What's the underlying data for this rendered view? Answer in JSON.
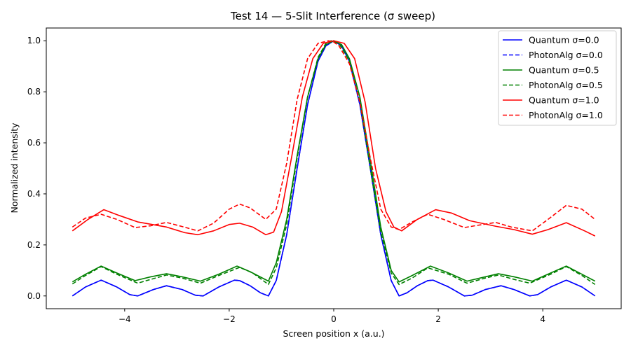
{
  "chart_data": {
    "type": "line",
    "title": "Test 14 — 5-Slit Interference (σ sweep)",
    "xlabel": "Screen position x (a.u.)",
    "ylabel": "Normalized intensity",
    "xlim": [
      -5.5,
      5.5
    ],
    "ylim": [
      -0.05,
      1.05
    ],
    "xticks": [
      -4,
      -2,
      0,
      2,
      4
    ],
    "xtick_labels": [
      "−4",
      "−2",
      "0",
      "2",
      "4"
    ],
    "yticks": [
      0.0,
      0.2,
      0.4,
      0.6,
      0.8,
      1.0
    ],
    "ytick_labels": [
      "0.0",
      "0.2",
      "0.4",
      "0.6",
      "0.8",
      "1.0"
    ],
    "grid": false,
    "legend_position": "top-right",
    "series": [
      {
        "name": "Quantum σ=0.0",
        "color": "#0000ff",
        "style": "solid",
        "x": [
          -5.0,
          -4.75,
          -4.45,
          -4.15,
          -3.9,
          -3.75,
          -3.45,
          -3.2,
          -2.9,
          -2.65,
          -2.5,
          -2.2,
          -1.9,
          -1.8,
          -1.6,
          -1.4,
          -1.25,
          -1.1,
          -0.9,
          -0.7,
          -0.5,
          -0.3,
          -0.15,
          0.0,
          0.15,
          0.3,
          0.5,
          0.7,
          0.9,
          1.1,
          1.25,
          1.4,
          1.6,
          1.8,
          1.9,
          2.2,
          2.5,
          2.65,
          2.9,
          3.2,
          3.45,
          3.75,
          3.9,
          4.15,
          4.45,
          4.75,
          5.0
        ],
        "y": [
          0.0,
          0.035,
          0.062,
          0.035,
          0.005,
          0.0,
          0.025,
          0.04,
          0.025,
          0.003,
          0.0,
          0.035,
          0.062,
          0.06,
          0.04,
          0.012,
          0.0,
          0.06,
          0.24,
          0.5,
          0.75,
          0.92,
          0.98,
          1.0,
          0.98,
          0.92,
          0.75,
          0.5,
          0.24,
          0.06,
          0.0,
          0.012,
          0.04,
          0.06,
          0.062,
          0.035,
          0.0,
          0.003,
          0.025,
          0.04,
          0.025,
          0.0,
          0.005,
          0.035,
          0.062,
          0.035,
          0.0
        ]
      },
      {
        "name": "PhotonAlg σ=0.0",
        "color": "#0000ff",
        "style": "dashed",
        "x": [
          -5.0,
          -4.75,
          -4.45,
          -4.15,
          -3.9,
          -3.75,
          -3.45,
          -3.2,
          -2.9,
          -2.65,
          -2.5,
          -2.2,
          -1.9,
          -1.8,
          -1.6,
          -1.4,
          -1.25,
          -1.1,
          -0.9,
          -0.7,
          -0.5,
          -0.3,
          -0.15,
          0.0,
          0.15,
          0.3,
          0.5,
          0.7,
          0.9,
          1.1,
          1.25,
          1.4,
          1.6,
          1.8,
          1.9,
          2.2,
          2.5,
          2.65,
          2.9,
          3.2,
          3.45,
          3.75,
          3.9,
          4.15,
          4.45,
          4.75,
          5.0
        ],
        "y": [
          0.0,
          0.035,
          0.062,
          0.035,
          0.005,
          0.0,
          0.025,
          0.04,
          0.025,
          0.003,
          0.0,
          0.035,
          0.062,
          0.06,
          0.04,
          0.012,
          0.0,
          0.06,
          0.24,
          0.5,
          0.75,
          0.92,
          0.98,
          1.0,
          0.98,
          0.92,
          0.75,
          0.5,
          0.24,
          0.06,
          0.0,
          0.012,
          0.04,
          0.06,
          0.062,
          0.035,
          0.0,
          0.003,
          0.025,
          0.04,
          0.025,
          0.0,
          0.005,
          0.035,
          0.062,
          0.035,
          0.0
        ]
      },
      {
        "name": "Quantum σ=0.5",
        "color": "#008000",
        "style": "solid",
        "x": [
          -5.0,
          -4.75,
          -4.45,
          -4.15,
          -3.8,
          -3.5,
          -3.2,
          -2.9,
          -2.55,
          -2.2,
          -1.85,
          -1.6,
          -1.25,
          -1.1,
          -0.9,
          -0.7,
          -0.5,
          -0.3,
          -0.15,
          0.0,
          0.15,
          0.3,
          0.5,
          0.7,
          0.9,
          1.1,
          1.25,
          1.5,
          1.85,
          2.2,
          2.55,
          2.9,
          3.15,
          3.45,
          3.8,
          4.15,
          4.45,
          4.75,
          5.0
        ],
        "y": [
          0.055,
          0.085,
          0.117,
          0.09,
          0.06,
          0.075,
          0.087,
          0.075,
          0.058,
          0.085,
          0.117,
          0.095,
          0.058,
          0.13,
          0.3,
          0.55,
          0.78,
          0.93,
          0.985,
          1.0,
          0.985,
          0.93,
          0.78,
          0.53,
          0.27,
          0.1,
          0.055,
          0.08,
          0.117,
          0.09,
          0.058,
          0.075,
          0.087,
          0.075,
          0.058,
          0.09,
          0.117,
          0.085,
          0.058
        ]
      },
      {
        "name": "PhotonAlg σ=0.5",
        "color": "#008000",
        "style": "dashed",
        "x": [
          -5.0,
          -4.75,
          -4.45,
          -4.15,
          -3.75,
          -3.5,
          -3.2,
          -2.9,
          -2.55,
          -2.2,
          -1.8,
          -1.55,
          -1.25,
          -1.1,
          -0.9,
          -0.7,
          -0.5,
          -0.3,
          -0.15,
          -0.05,
          0.1,
          0.3,
          0.5,
          0.7,
          0.9,
          1.1,
          1.25,
          1.5,
          1.8,
          2.2,
          2.55,
          2.9,
          3.15,
          3.45,
          3.75,
          4.15,
          4.45,
          4.75,
          5.0
        ],
        "y": [
          0.047,
          0.08,
          0.115,
          0.085,
          0.05,
          0.065,
          0.082,
          0.07,
          0.05,
          0.08,
          0.112,
          0.09,
          0.045,
          0.11,
          0.28,
          0.54,
          0.78,
          0.935,
          0.99,
          1.0,
          0.99,
          0.92,
          0.76,
          0.5,
          0.25,
          0.09,
          0.045,
          0.07,
          0.11,
          0.085,
          0.05,
          0.07,
          0.082,
          0.065,
          0.05,
          0.085,
          0.115,
          0.08,
          0.045
        ]
      },
      {
        "name": "Quantum σ=1.0",
        "color": "#ff0000",
        "style": "solid",
        "x": [
          -5.0,
          -4.7,
          -4.4,
          -4.1,
          -3.75,
          -3.2,
          -2.85,
          -2.6,
          -2.3,
          -2.0,
          -1.8,
          -1.55,
          -1.3,
          -1.15,
          -1.0,
          -0.8,
          -0.6,
          -0.4,
          -0.2,
          0.0,
          0.2,
          0.4,
          0.6,
          0.8,
          1.0,
          1.15,
          1.3,
          1.6,
          1.95,
          2.25,
          2.6,
          3.1,
          3.45,
          3.8,
          4.1,
          4.45,
          4.8,
          5.0
        ],
        "y": [
          0.255,
          0.3,
          0.338,
          0.315,
          0.29,
          0.27,
          0.248,
          0.24,
          0.255,
          0.28,
          0.285,
          0.27,
          0.24,
          0.25,
          0.33,
          0.55,
          0.78,
          0.93,
          0.99,
          1.0,
          0.99,
          0.93,
          0.76,
          0.5,
          0.33,
          0.27,
          0.255,
          0.3,
          0.338,
          0.325,
          0.295,
          0.273,
          0.26,
          0.242,
          0.26,
          0.287,
          0.255,
          0.235
        ]
      },
      {
        "name": "PhotonAlg σ=1.0",
        "color": "#ff0000",
        "style": "dashed",
        "x": [
          -5.0,
          -4.75,
          -4.45,
          -4.15,
          -3.8,
          -3.5,
          -3.2,
          -2.9,
          -2.6,
          -2.3,
          -2.0,
          -1.8,
          -1.6,
          -1.3,
          -1.1,
          -0.9,
          -0.7,
          -0.5,
          -0.3,
          -0.1,
          0.0,
          0.1,
          0.3,
          0.5,
          0.7,
          0.9,
          1.1,
          1.25,
          1.5,
          1.8,
          2.1,
          2.5,
          2.85,
          3.1,
          3.4,
          3.8,
          4.1,
          4.45,
          4.75,
          5.0
        ],
        "y": [
          0.27,
          0.305,
          0.32,
          0.3,
          0.268,
          0.275,
          0.288,
          0.272,
          0.255,
          0.285,
          0.34,
          0.36,
          0.345,
          0.3,
          0.34,
          0.52,
          0.77,
          0.93,
          0.99,
          1.0,
          0.995,
          0.98,
          0.91,
          0.76,
          0.54,
          0.34,
          0.27,
          0.26,
          0.29,
          0.32,
          0.3,
          0.268,
          0.28,
          0.288,
          0.27,
          0.255,
          0.3,
          0.355,
          0.34,
          0.3
        ]
      }
    ]
  }
}
